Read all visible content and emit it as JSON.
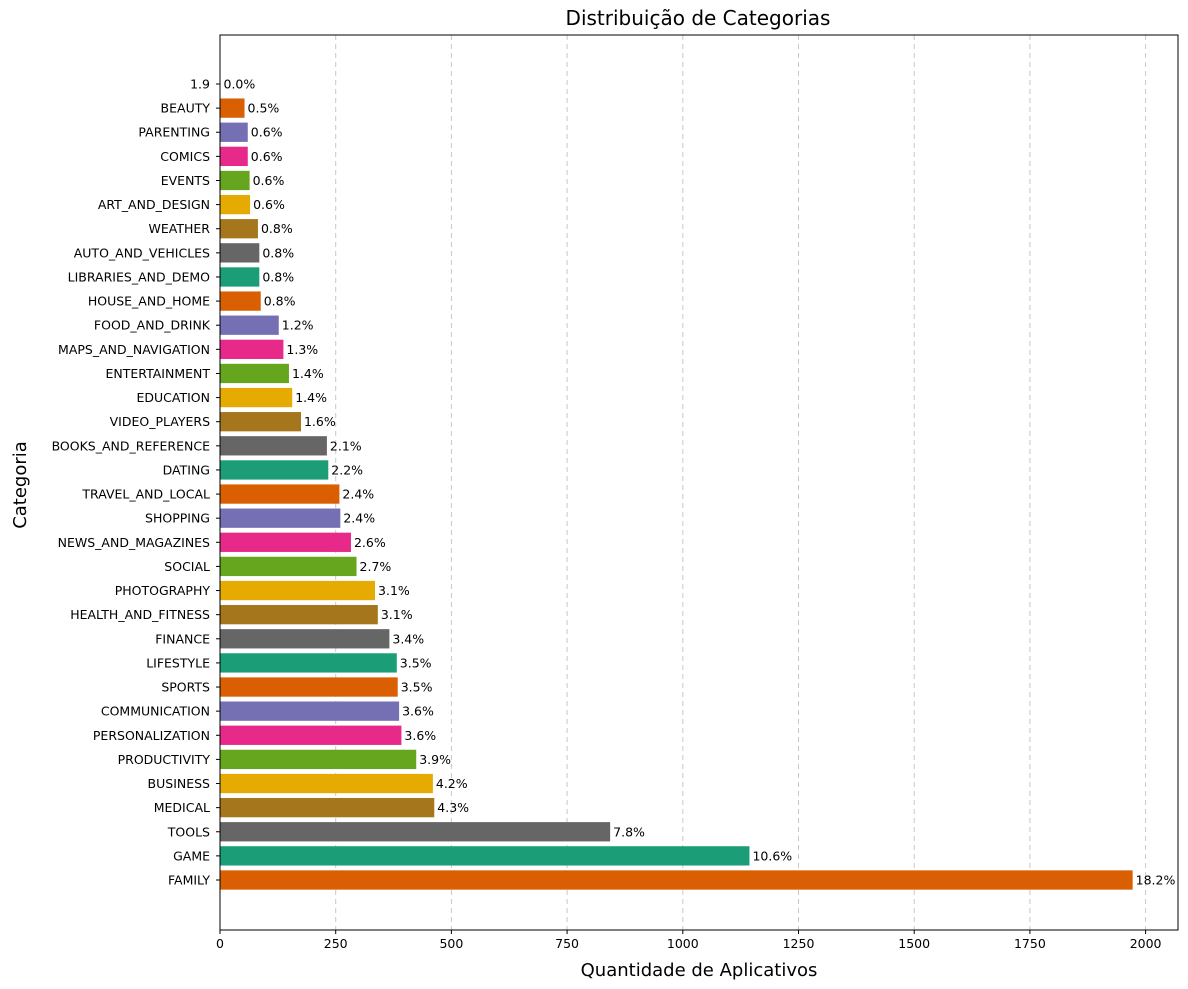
{
  "chart_data": {
    "type": "bar",
    "orientation": "horizontal",
    "title": "Distribuição de Categorias",
    "xlabel": "Quantidade de Aplicativos",
    "ylabel": "Categoria",
    "xlim": [
      0,
      2070
    ],
    "xticks": [
      0,
      250,
      500,
      750,
      1000,
      1250,
      1500,
      1750,
      2000
    ],
    "grid": "x-dashed",
    "categories": [
      "FAMILY",
      "GAME",
      "TOOLS",
      "MEDICAL",
      "BUSINESS",
      "PRODUCTIVITY",
      "PERSONALIZATION",
      "COMMUNICATION",
      "SPORTS",
      "LIFESTYLE",
      "FINANCE",
      "HEALTH_AND_FITNESS",
      "PHOTOGRAPHY",
      "SOCIAL",
      "NEWS_AND_MAGAZINES",
      "SHOPPING",
      "TRAVEL_AND_LOCAL",
      "DATING",
      "BOOKS_AND_REFERENCE",
      "VIDEO_PLAYERS",
      "EDUCATION",
      "ENTERTAINMENT",
      "MAPS_AND_NAVIGATION",
      "FOOD_AND_DRINK",
      "HOUSE_AND_HOME",
      "LIBRARIES_AND_DEMO",
      "AUTO_AND_VEHICLES",
      "WEATHER",
      "ART_AND_DESIGN",
      "EVENTS",
      "COMICS",
      "PARENTING",
      "BEAUTY",
      "1.9"
    ],
    "values": [
      1972,
      1144,
      843,
      463,
      460,
      424,
      392,
      387,
      384,
      382,
      366,
      341,
      335,
      295,
      283,
      260,
      258,
      234,
      231,
      175,
      156,
      149,
      137,
      127,
      88,
      85,
      85,
      82,
      65,
      64,
      60,
      60,
      53,
      1
    ],
    "labels": [
      "18.2%",
      "10.6%",
      "7.8%",
      "4.3%",
      "4.2%",
      "3.9%",
      "3.6%",
      "3.6%",
      "3.5%",
      "3.5%",
      "3.4%",
      "3.1%",
      "3.1%",
      "2.7%",
      "2.6%",
      "2.4%",
      "2.4%",
      "2.2%",
      "2.1%",
      "1.6%",
      "1.4%",
      "1.4%",
      "1.3%",
      "1.2%",
      "0.8%",
      "0.8%",
      "0.8%",
      "0.8%",
      "0.6%",
      "0.6%",
      "0.6%",
      "0.6%",
      "0.5%",
      "0.0%"
    ],
    "palette": [
      "#d95f02",
      "#1b9e77",
      "#666666",
      "#a6761d",
      "#e6ab02",
      "#66a61e",
      "#e7298a",
      "#7570b3"
    ]
  }
}
